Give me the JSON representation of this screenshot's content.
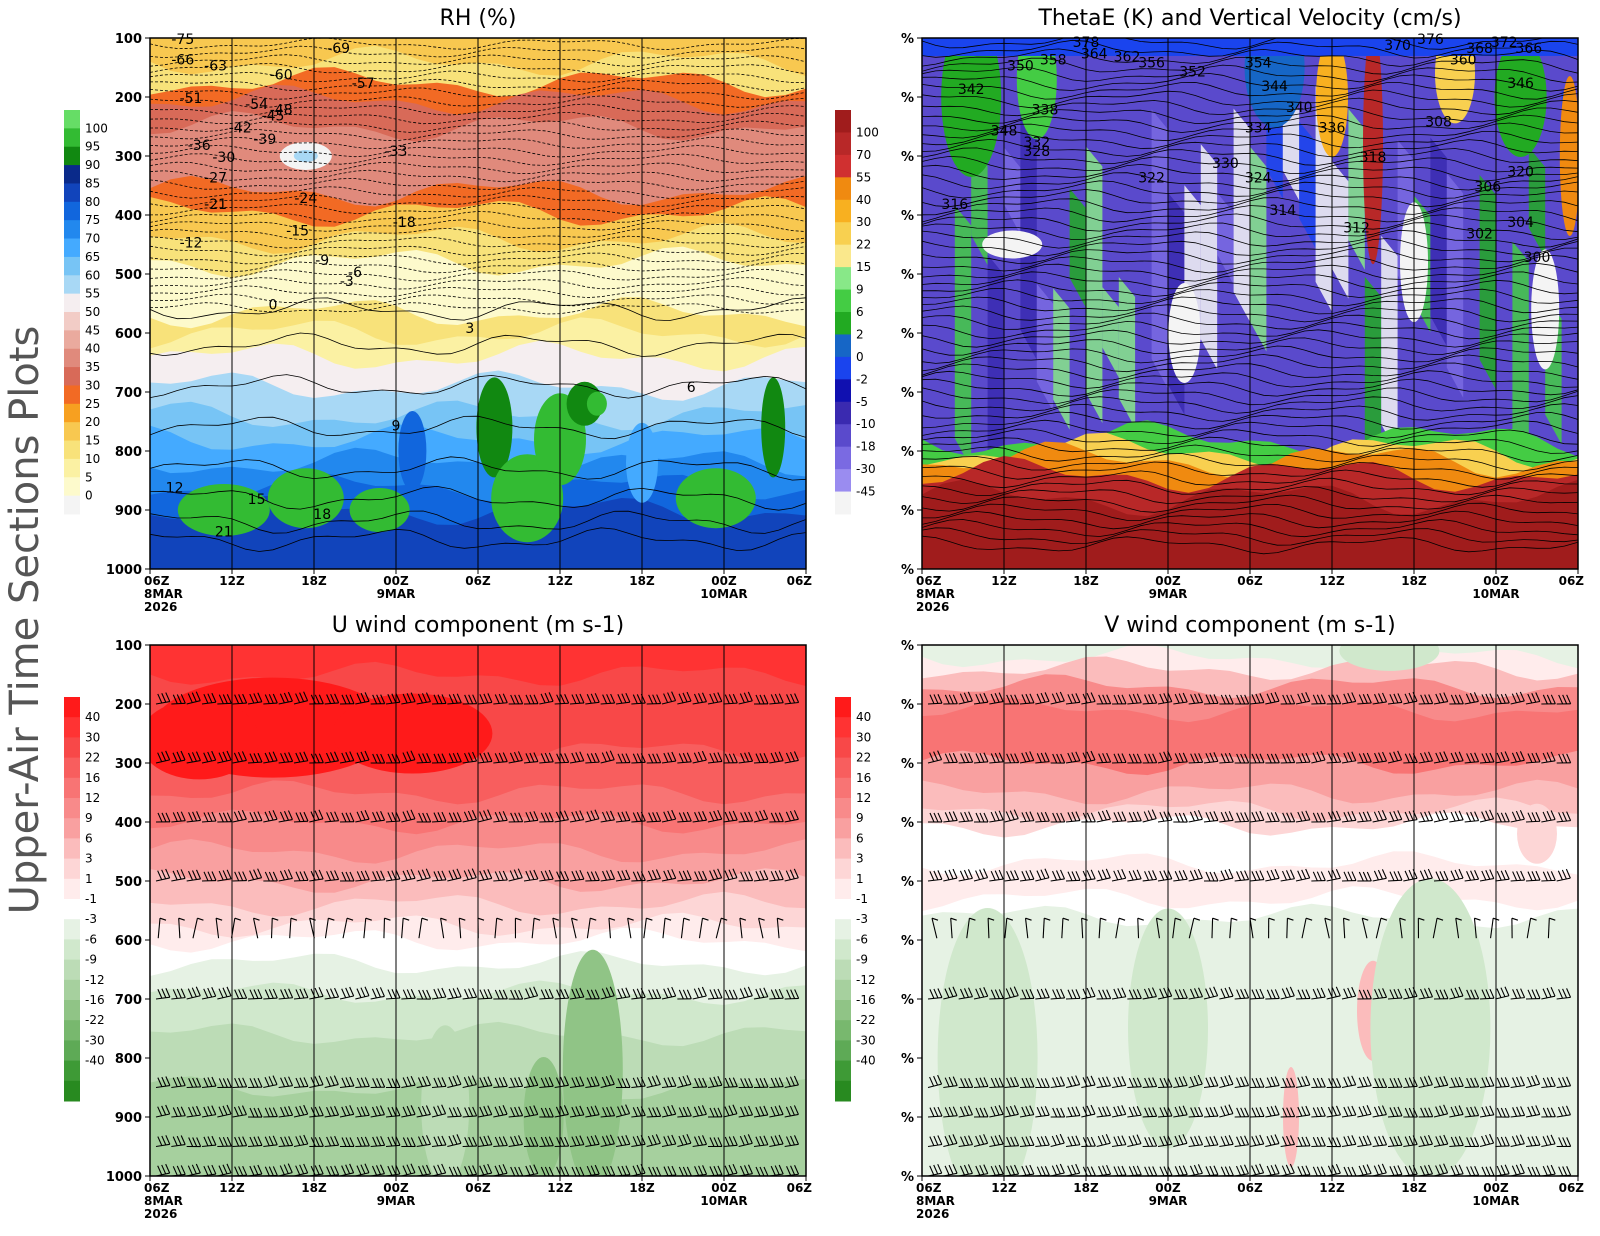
{
  "suptitle": "Upper-Air Time Sections Plots",
  "x_tick_labels": [
    {
      "time": "06Z",
      "date": "8MAR",
      "year": "2026"
    },
    {
      "time": "12Z",
      "date": "",
      "year": ""
    },
    {
      "time": "18Z",
      "date": "",
      "year": ""
    },
    {
      "time": "00Z",
      "date": "9MAR",
      "year": ""
    },
    {
      "time": "06Z",
      "date": "",
      "year": ""
    },
    {
      "time": "12Z",
      "date": "",
      "year": ""
    },
    {
      "time": "18Z",
      "date": "",
      "year": ""
    },
    {
      "time": "00Z",
      "date": "10MAR",
      "year": ""
    },
    {
      "time": "06Z",
      "date": "",
      "year": ""
    }
  ],
  "chart_data": [
    {
      "id": "rh",
      "type": "heatmap",
      "title": "RH (%)",
      "y_ticks": [
        "100",
        "200",
        "300",
        "400",
        "500",
        "600",
        "700",
        "800",
        "900",
        "1000"
      ],
      "colorbar": {
        "levels": [
          "100",
          "95",
          "90",
          "85",
          "80",
          "75",
          "70",
          "65",
          "60",
          "55",
          "50",
          "45",
          "40",
          "35",
          "30",
          "25",
          "20",
          "15",
          "10",
          "5",
          "0"
        ],
        "colors": [
          "#66dd66",
          "#33bb33",
          "#118811",
          "#0a2a8a",
          "#1144bb",
          "#1166dd",
          "#2288ee",
          "#44aaff",
          "#77c4f5",
          "#a8d8f5",
          "#f5eef0",
          "#f2ccc6",
          "#eaaa9e",
          "#e08a7c",
          "#d86a58",
          "#f26a24",
          "#f7a020",
          "#f8c850",
          "#f8e27a",
          "#fbf1a3",
          "#fdfacc",
          "#f4f4f4"
        ]
      },
      "contour_labels": [
        "-75",
        "-69",
        "-66",
        "-63",
        "-60",
        "-57",
        "-54",
        "-51",
        "-48",
        "-45",
        "-42",
        "-39",
        "-36",
        "-33",
        "-30",
        "-27",
        "-24",
        "-21",
        "-18",
        "-15",
        "-12",
        "-9",
        "-6",
        "-3",
        "0",
        "3",
        "6",
        "9",
        "12",
        "15",
        "18",
        "21"
      ]
    },
    {
      "id": "thetae",
      "type": "heatmap",
      "title": "ThetaE (K) and Vertical Velocity (cm/s)",
      "y_ticks": [
        "%",
        "%",
        "%",
        "%",
        "%",
        "%",
        "%",
        "%",
        "%",
        "%"
      ],
      "colorbar": {
        "levels": [
          "100",
          "70",
          "55",
          "40",
          "30",
          "22",
          "15",
          "9",
          "6",
          "2",
          "0",
          "-2",
          "-5",
          "-10",
          "-18",
          "-30",
          "-45"
        ],
        "colors": [
          "#a01c1c",
          "#b82828",
          "#d03030",
          "#f08a10",
          "#f8b020",
          "#f8d050",
          "#fae88c",
          "#88e888",
          "#44cc44",
          "#22aa22",
          "#1666c6",
          "#1a44ee",
          "#1010b0",
          "#3a2ab0",
          "#5a4acc",
          "#7a6ae2",
          "#9a8cf0",
          "#f4f4f4"
        ]
      },
      "contour_labels": [
        "378",
        "376",
        "372",
        "370",
        "368",
        "366",
        "364",
        "362",
        "360",
        "358",
        "356",
        "354",
        "352",
        "350",
        "348",
        "346",
        "344",
        "342",
        "340",
        "338",
        "336",
        "334",
        "332",
        "330",
        "328",
        "324",
        "322",
        "320",
        "318",
        "316",
        "314",
        "312",
        "308",
        "306",
        "304",
        "302",
        "300"
      ]
    },
    {
      "id": "uwind",
      "type": "heatmap",
      "title": "U wind component (m s-1)",
      "y_ticks": [
        "100",
        "200",
        "300",
        "400",
        "500",
        "600",
        "700",
        "800",
        "900",
        "1000"
      ],
      "colorbar": {
        "levels": [
          "40",
          "30",
          "22",
          "16",
          "12",
          "9",
          "6",
          "3",
          "1",
          "-1",
          "-3",
          "-6",
          "-9",
          "-12",
          "-16",
          "-22",
          "-30",
          "-40"
        ],
        "colors": [
          "#ff1a1a",
          "#ff3333",
          "#f84848",
          "#f85e5e",
          "#f87474",
          "#f88a8a",
          "#f9a0a0",
          "#fbbcbc",
          "#fdd6d6",
          "#ffecec",
          "#ffffff",
          "#e6f2e4",
          "#d0e8cc",
          "#bcdcb6",
          "#a6d09e",
          "#90c486",
          "#78b86e",
          "#5eaa56",
          "#3e9a36",
          "#288a20"
        ]
      },
      "barb_levels": [
        "200",
        "300",
        "400",
        "500",
        "580",
        "700",
        "850",
        "900",
        "950",
        "1000"
      ]
    },
    {
      "id": "vwind",
      "type": "heatmap",
      "title": "V wind component (m s-1)",
      "y_ticks": [
        "%",
        "%",
        "%",
        "%",
        "%",
        "%",
        "%",
        "%",
        "%",
        "%"
      ],
      "colorbar": {
        "levels": [
          "40",
          "30",
          "22",
          "16",
          "12",
          "9",
          "6",
          "3",
          "1",
          "-1",
          "-3",
          "-6",
          "-9",
          "-12",
          "-16",
          "-22",
          "-30",
          "-40"
        ],
        "colors": [
          "#ff1a1a",
          "#ff3333",
          "#f84848",
          "#f85e5e",
          "#f87474",
          "#f88a8a",
          "#f9a0a0",
          "#fbbcbc",
          "#fdd6d6",
          "#ffecec",
          "#ffffff",
          "#e6f2e4",
          "#d0e8cc",
          "#bcdcb6",
          "#a6d09e",
          "#90c486",
          "#78b86e",
          "#5eaa56",
          "#3e9a36",
          "#288a20"
        ]
      }
    }
  ]
}
